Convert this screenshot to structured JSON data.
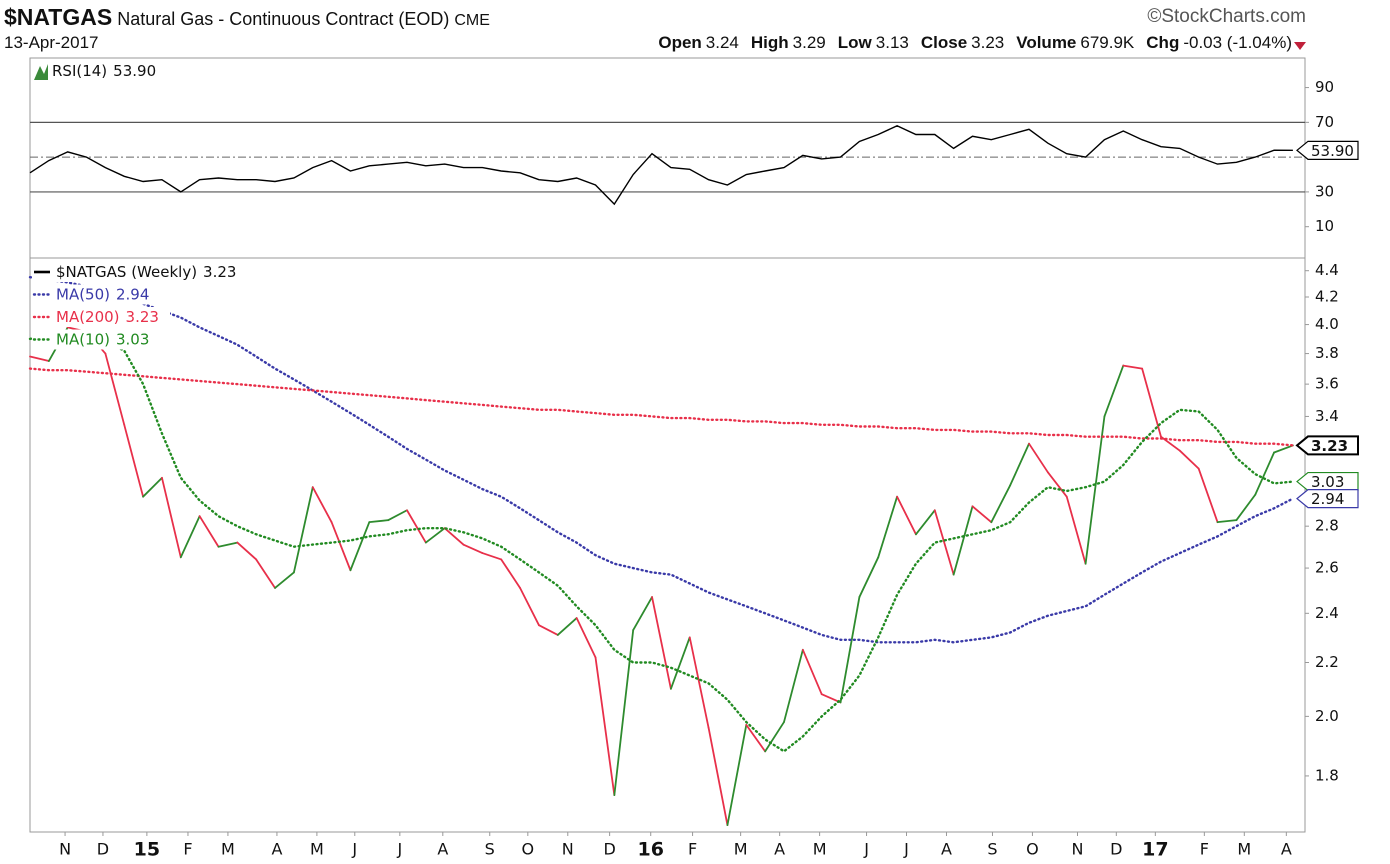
{
  "header": {
    "symbol": "$NATGAS",
    "name": "Natural Gas - Continuous Contract (EOD)",
    "exchange": "CME",
    "source": "©StockCharts.com",
    "date": "13-Apr-2017",
    "quote": [
      {
        "label": "Open",
        "value": 3.24
      },
      {
        "label": "High",
        "value": 3.29
      },
      {
        "label": "Low",
        "value": 3.13
      },
      {
        "label": "Close",
        "value": 3.23
      },
      {
        "label": "Volume",
        "value": "679.9K"
      },
      {
        "label": "Chg",
        "value": "-0.03 (-1.04%)"
      }
    ]
  },
  "chart_data": [
    {
      "type": "line",
      "title": "RSI(14)",
      "current_label": "53.90",
      "series": [
        {
          "name": "RSI(14)",
          "color": "#000000",
          "values": [
            41,
            48,
            53,
            50,
            44,
            39,
            36,
            37,
            30,
            37,
            38,
            37,
            37,
            36,
            38,
            44,
            48,
            42,
            45,
            46,
            47,
            45,
            46,
            44,
            44,
            42,
            41,
            37,
            36,
            38,
            34,
            23,
            40,
            52,
            44,
            43,
            37,
            34,
            40,
            42,
            44,
            51,
            49,
            50,
            59,
            63,
            68,
            63,
            63,
            55,
            62,
            60,
            63,
            66,
            58,
            52,
            50,
            60,
            65,
            60,
            56,
            55,
            50,
            46,
            47,
            50,
            54,
            53.9
          ]
        }
      ],
      "xlim": [
        0,
        67.64
      ],
      "ylim": [
        -8,
        107
      ],
      "yticks": [
        10,
        30,
        70,
        90
      ],
      "levels": [
        30,
        70
      ],
      "midline": 50
    },
    {
      "type": "line",
      "log_scale": true,
      "grid": false,
      "series": [
        {
          "name": "$NATGAS (Weekly)",
          "color": "#000000",
          "up_color": "#2e8b2e",
          "down_color": "#e8304a",
          "values": [
            3.78,
            3.75,
            3.98,
            3.95,
            3.8,
            3.35,
            2.95,
            3.05,
            2.65,
            2.85,
            2.7,
            2.72,
            2.64,
            2.51,
            2.58,
            3.0,
            2.82,
            2.59,
            2.82,
            2.83,
            2.88,
            2.72,
            2.79,
            2.71,
            2.67,
            2.64,
            2.51,
            2.35,
            2.31,
            2.38,
            2.22,
            1.74,
            2.33,
            2.47,
            2.1,
            2.3,
            1.96,
            1.65,
            1.97,
            1.88,
            1.98,
            2.25,
            2.08,
            2.05,
            2.47,
            2.65,
            2.95,
            2.76,
            2.88,
            2.57,
            2.9,
            2.82,
            3.01,
            3.24,
            3.08,
            2.95,
            2.62,
            3.4,
            3.72,
            3.7,
            3.28,
            3.2,
            3.1,
            2.82,
            2.83,
            2.96,
            3.19,
            3.23
          ]
        },
        {
          "name": "MA(50)",
          "color": "#3a3aa8",
          "style": "dotted",
          "values": [
            4.35,
            4.33,
            4.31,
            4.28,
            4.24,
            4.2,
            4.15,
            4.1,
            4.05,
            3.98,
            3.92,
            3.86,
            3.78,
            3.7,
            3.63,
            3.56,
            3.49,
            3.42,
            3.35,
            3.28,
            3.21,
            3.15,
            3.09,
            3.04,
            2.99,
            2.95,
            2.89,
            2.83,
            2.77,
            2.72,
            2.66,
            2.62,
            2.6,
            2.58,
            2.57,
            2.53,
            2.49,
            2.46,
            2.43,
            2.4,
            2.37,
            2.34,
            2.31,
            2.29,
            2.29,
            2.28,
            2.28,
            2.28,
            2.29,
            2.28,
            2.29,
            2.3,
            2.32,
            2.36,
            2.39,
            2.41,
            2.43,
            2.48,
            2.53,
            2.58,
            2.63,
            2.67,
            2.71,
            2.75,
            2.8,
            2.85,
            2.89,
            2.94
          ]
        },
        {
          "name": "MA(200)",
          "color": "#e8304a",
          "style": "dotted",
          "values": [
            3.7,
            3.69,
            3.69,
            3.68,
            3.67,
            3.66,
            3.65,
            3.64,
            3.63,
            3.62,
            3.61,
            3.6,
            3.59,
            3.58,
            3.57,
            3.56,
            3.55,
            3.54,
            3.53,
            3.52,
            3.51,
            3.5,
            3.49,
            3.48,
            3.47,
            3.46,
            3.45,
            3.44,
            3.44,
            3.43,
            3.42,
            3.41,
            3.41,
            3.4,
            3.39,
            3.39,
            3.38,
            3.38,
            3.37,
            3.37,
            3.36,
            3.36,
            3.35,
            3.35,
            3.34,
            3.34,
            3.33,
            3.33,
            3.32,
            3.32,
            3.31,
            3.31,
            3.3,
            3.3,
            3.29,
            3.29,
            3.28,
            3.28,
            3.28,
            3.27,
            3.27,
            3.26,
            3.26,
            3.25,
            3.25,
            3.24,
            3.24,
            3.23
          ]
        },
        {
          "name": "MA(10)",
          "color": "#228b22",
          "style": "dotted",
          "values": [
            3.9,
            3.93,
            3.95,
            3.92,
            3.88,
            3.82,
            3.6,
            3.3,
            3.05,
            2.93,
            2.85,
            2.8,
            2.76,
            2.73,
            2.7,
            2.71,
            2.72,
            2.73,
            2.75,
            2.76,
            2.78,
            2.79,
            2.79,
            2.77,
            2.74,
            2.7,
            2.64,
            2.58,
            2.52,
            2.43,
            2.35,
            2.25,
            2.2,
            2.2,
            2.18,
            2.15,
            2.12,
            2.06,
            1.98,
            1.92,
            1.88,
            1.93,
            2.0,
            2.06,
            2.15,
            2.3,
            2.48,
            2.62,
            2.72,
            2.74,
            2.76,
            2.78,
            2.82,
            2.92,
            3.0,
            2.98,
            3.0,
            3.03,
            3.12,
            3.25,
            3.36,
            3.44,
            3.43,
            3.32,
            3.16,
            3.07,
            3.02,
            3.03
          ]
        }
      ],
      "xlim": [
        0,
        67.64
      ],
      "ylim": [
        1.63,
        4.5
      ],
      "yticks": [
        1.8,
        {
          "value": 2.0,
          "label": "2.0"
        },
        2.2,
        2.4,
        2.6,
        2.8,
        3.4,
        3.6,
        3.8,
        {
          "value": 4.0,
          "label": "4.0"
        },
        4.2,
        4.4
      ],
      "xticks": [
        {
          "value": 1.86,
          "label": "N"
        },
        {
          "value": 3.87,
          "label": "D"
        },
        {
          "value": 6.2,
          "label": "15"
        },
        {
          "value": 8.38,
          "label": "F"
        },
        {
          "value": 10.5,
          "label": "M"
        },
        {
          "value": 13.1,
          "label": "A"
        },
        {
          "value": 15.22,
          "label": "M"
        },
        {
          "value": 17.23,
          "label": "J"
        },
        {
          "value": 19.62,
          "label": "J"
        },
        {
          "value": 21.9,
          "label": "A"
        },
        {
          "value": 24.39,
          "label": "S"
        },
        {
          "value": 26.41,
          "label": "O"
        },
        {
          "value": 28.53,
          "label": "N"
        },
        {
          "value": 30.75,
          "label": "D"
        },
        {
          "value": 32.93,
          "label": "16"
        },
        {
          "value": 35.15,
          "label": "F"
        },
        {
          "value": 37.7,
          "label": "M"
        },
        {
          "value": 39.77,
          "label": "A"
        },
        {
          "value": 41.89,
          "label": "M"
        },
        {
          "value": 44.38,
          "label": "J"
        },
        {
          "value": 46.5,
          "label": "J"
        },
        {
          "value": 48.62,
          "label": "A"
        },
        {
          "value": 51.06,
          "label": "S"
        },
        {
          "value": 53.18,
          "label": "O"
        },
        {
          "value": 55.57,
          "label": "N"
        },
        {
          "value": 57.63,
          "label": "D"
        },
        {
          "value": 59.7,
          "label": "17"
        },
        {
          "value": 62.3,
          "label": "F"
        },
        {
          "value": 64.42,
          "label": "M"
        },
        {
          "value": 66.65,
          "label": "A"
        }
      ]
    }
  ]
}
